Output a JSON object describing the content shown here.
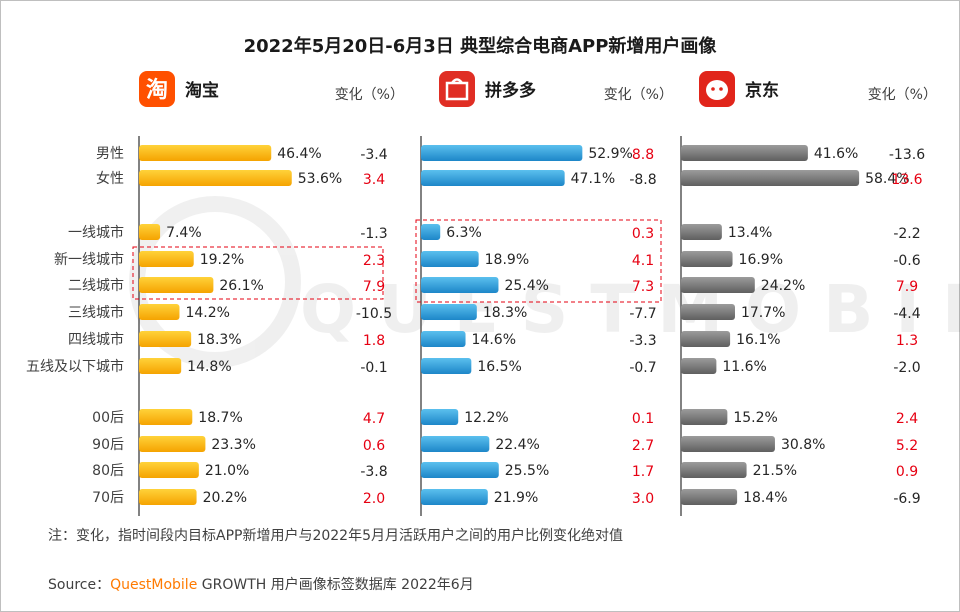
{
  "chart_data": {
    "type": "bar",
    "title": "2022年5月20日-6月3日 典型综合电商APP新增用户画像",
    "categories": [
      "男性",
      "女性",
      "一线城市",
      "新一线城市",
      "二线城市",
      "三线城市",
      "四线城市",
      "五线及以下城市",
      "00后",
      "90后",
      "80后",
      "70后"
    ],
    "change_header": "变化（%）",
    "series": [
      {
        "name": "淘宝",
        "logo_char": "淘",
        "color": "#ffc000",
        "values": [
          46.4,
          53.6,
          7.4,
          19.2,
          26.1,
          14.2,
          18.3,
          14.8,
          18.7,
          23.3,
          21.0,
          20.2
        ],
        "labels": [
          "46.4%",
          "53.6%",
          "7.4%",
          "19.2%",
          "26.1%",
          "14.2%",
          "18.3%",
          "14.8%",
          "18.7%",
          "23.3%",
          "21.0%",
          "20.2%"
        ],
        "changes": [
          "-3.4",
          "3.4",
          "-1.3",
          "2.3",
          "7.9",
          "-10.5",
          "1.8",
          "-0.1",
          "4.7",
          "0.6",
          "-3.8",
          "2.0"
        ]
      },
      {
        "name": "拼多多",
        "logo_char": "拼",
        "color": "#2e9bd6",
        "values": [
          52.9,
          47.1,
          6.3,
          18.9,
          25.4,
          18.3,
          14.6,
          16.5,
          12.2,
          22.4,
          25.5,
          21.9
        ],
        "labels": [
          "52.9%",
          "47.1%",
          "6.3%",
          "18.9%",
          "25.4%",
          "18.3%",
          "14.6%",
          "16.5%",
          "12.2%",
          "22.4%",
          "25.5%",
          "21.9%"
        ],
        "changes": [
          "8.8",
          "-8.8",
          "0.3",
          "4.1",
          "7.3",
          "-7.7",
          "-3.3",
          "-0.7",
          "0.1",
          "2.7",
          "1.7",
          "3.0"
        ]
      },
      {
        "name": "京东",
        "logo_char": "京",
        "color": "#7f7f7f",
        "values": [
          41.6,
          58.4,
          13.4,
          16.9,
          24.2,
          17.7,
          16.1,
          11.6,
          15.2,
          30.8,
          21.5,
          18.4
        ],
        "labels": [
          "41.6%",
          "58.4%",
          "13.4%",
          "16.9%",
          "24.2%",
          "17.7%",
          "16.1%",
          "11.6%",
          "15.2%",
          "30.8%",
          "21.5%",
          "18.4%"
        ],
        "changes": [
          "-13.6",
          "13.6",
          "-2.2",
          "-0.6",
          "7.9",
          "-4.4",
          "1.3",
          "-2.0",
          "2.4",
          "5.2",
          "0.9",
          "-6.9"
        ]
      }
    ],
    "positive_change_color": "#e60012",
    "negative_change_color": "#262626",
    "note": "注：变化，指时间段内目标APP新增用户与2022年5月月活跃用户之间的用户比例变化绝对值",
    "source_prefix": "Source：",
    "source_brand": "QuestMobile",
    "source_suffix": " GROWTH 用户画像标签数据库 2022年6月",
    "watermark": "QUESTMOBILE"
  }
}
